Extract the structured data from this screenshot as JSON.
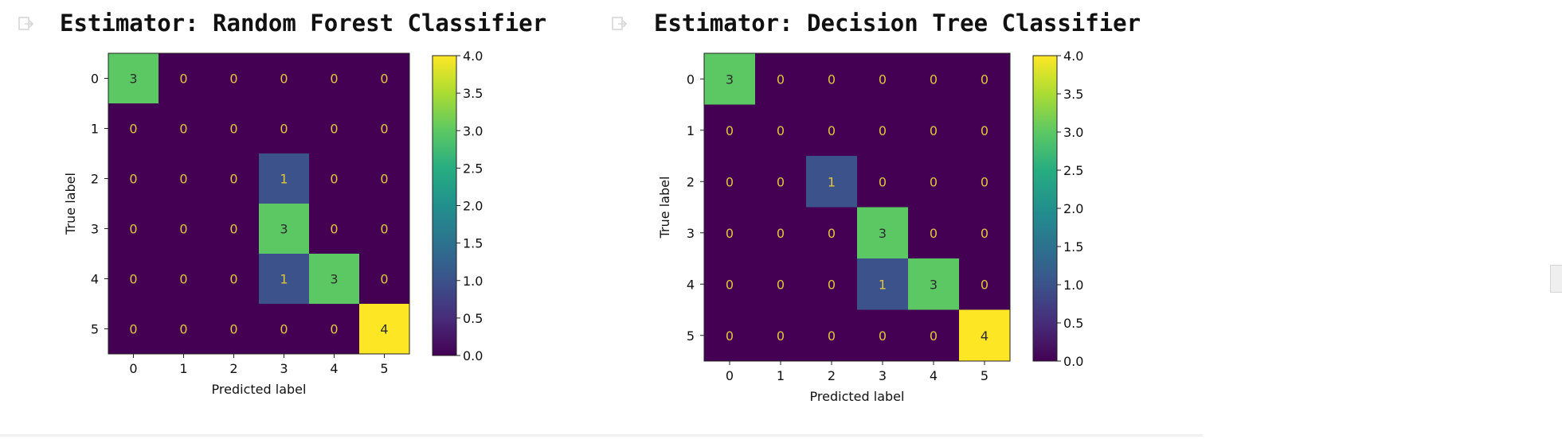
{
  "outputs": [
    {
      "icon": "output-cell-icon",
      "title": "Estimator: Random Forest Classifier"
    },
    {
      "icon": "output-cell-icon",
      "title": "Estimator: Decision Tree Classifier"
    }
  ],
  "chart_data": [
    {
      "type": "heatmap",
      "title": "",
      "xlabel": "Predicted label",
      "ylabel": "True label",
      "x": [
        "0",
        "1",
        "2",
        "3",
        "4",
        "5"
      ],
      "y": [
        "0",
        "1",
        "2",
        "3",
        "4",
        "5"
      ],
      "values": [
        [
          3,
          0,
          0,
          0,
          0,
          0
        ],
        [
          0,
          0,
          0,
          0,
          0,
          0
        ],
        [
          0,
          0,
          0,
          1,
          0,
          0
        ],
        [
          0,
          0,
          0,
          3,
          0,
          0
        ],
        [
          0,
          0,
          0,
          1,
          3,
          0
        ],
        [
          0,
          0,
          0,
          0,
          0,
          4
        ]
      ],
      "colormap": "viridis",
      "colorbar": {
        "range": [
          0.0,
          4.0
        ],
        "ticks": [
          "0.0",
          "0.5",
          "1.0",
          "1.5",
          "2.0",
          "2.5",
          "3.0",
          "3.5",
          "4.0"
        ]
      },
      "grid": false
    },
    {
      "type": "heatmap",
      "title": "",
      "xlabel": "Predicted label",
      "ylabel": "True label",
      "x": [
        "0",
        "1",
        "2",
        "3",
        "4",
        "5"
      ],
      "y": [
        "0",
        "1",
        "2",
        "3",
        "4",
        "5"
      ],
      "values": [
        [
          3,
          0,
          0,
          0,
          0,
          0
        ],
        [
          0,
          0,
          0,
          0,
          0,
          0
        ],
        [
          0,
          0,
          1,
          0,
          0,
          0
        ],
        [
          0,
          0,
          0,
          3,
          0,
          0
        ],
        [
          0,
          0,
          0,
          1,
          3,
          0
        ],
        [
          0,
          0,
          0,
          0,
          0,
          4
        ]
      ],
      "colormap": "viridis",
      "colorbar": {
        "range": [
          0.0,
          4.0
        ],
        "ticks": [
          "0.0",
          "0.5",
          "1.0",
          "1.5",
          "2.0",
          "2.5",
          "3.0",
          "3.5",
          "4.0"
        ]
      },
      "grid": false
    }
  ]
}
